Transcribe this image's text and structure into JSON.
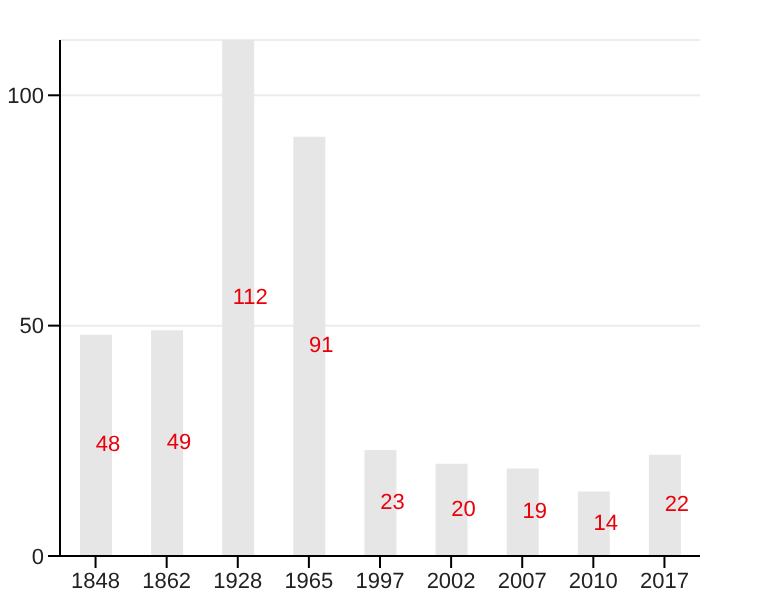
{
  "chart_data": {
    "type": "bar",
    "categories": [
      "1848",
      "1862",
      "1928",
      "1965",
      "1997",
      "2002",
      "2007",
      "2010",
      "2017"
    ],
    "values": [
      48,
      49,
      112,
      91,
      23,
      20,
      19,
      14,
      22
    ],
    "color": "#e6e6e6",
    "ylim": [
      0,
      112
    ],
    "yticks": [
      0,
      50,
      100
    ],
    "grid": "y",
    "data_labels": true
  }
}
